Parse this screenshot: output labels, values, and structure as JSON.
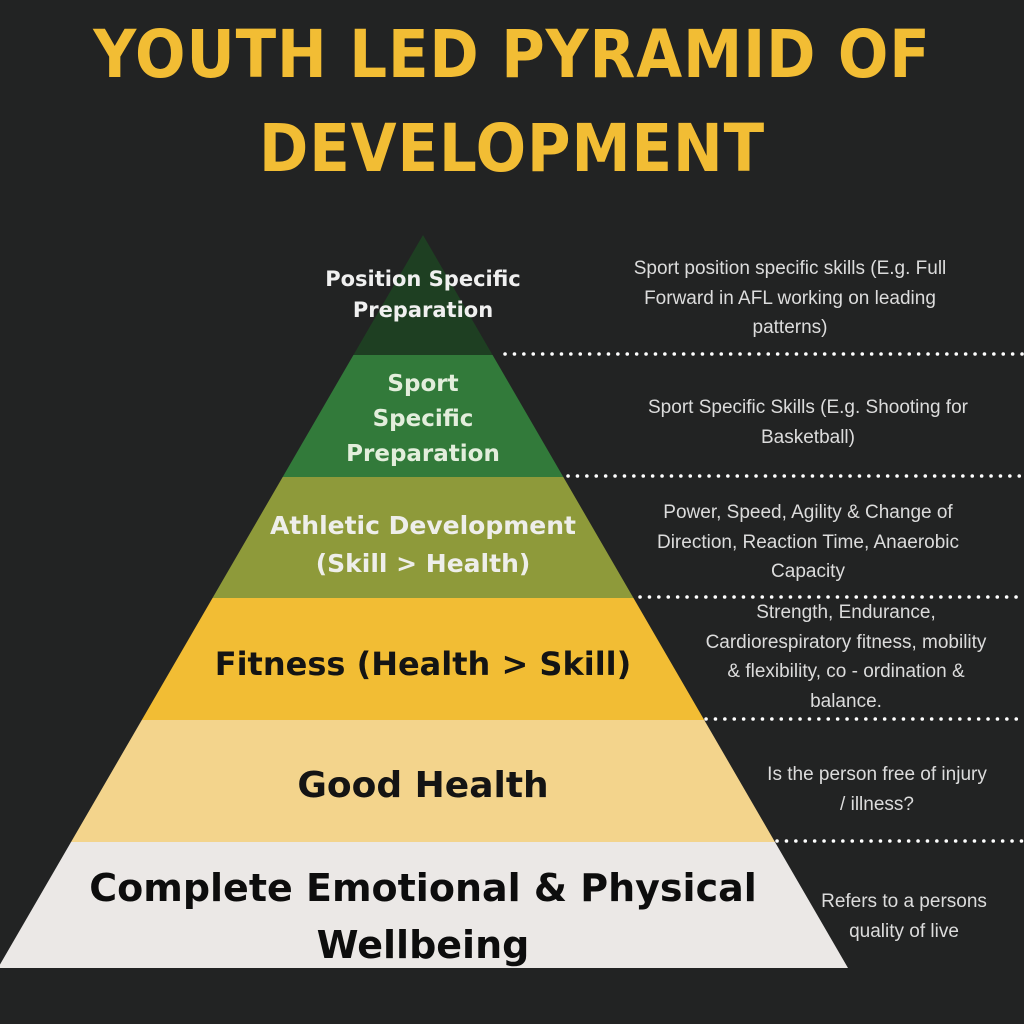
{
  "title": {
    "line1": "YOUTH LED PYRAMID OF",
    "line2": "DEVELOPMENT",
    "color": "#f2bd34"
  },
  "layers": [
    {
      "lines": [
        "Position Specific",
        "Preparation"
      ],
      "color": "#1e3f22",
      "text_color": "#f0f0f0",
      "description": [
        "Sport position specific skills (E.g. Full",
        "Forward in AFL working on leading",
        "patterns)"
      ]
    },
    {
      "lines": [
        "Sport",
        "Specific",
        "Preparation"
      ],
      "color": "#327a3a",
      "text_color": "#e3eedc",
      "description": [
        "Sport Specific Skills (E.g. Shooting for",
        "Basketball)"
      ]
    },
    {
      "lines": [
        "Athletic Development",
        "(Skill > Health)"
      ],
      "color": "#8e9a3a",
      "text_color": "#eeeeea",
      "description": [
        "Power, Speed, Agility & Change of",
        "Direction, Reaction Time, Anaerobic",
        "Capacity"
      ]
    },
    {
      "lines": [
        "Fitness (Health > Skill)"
      ],
      "color": "#f2bd34",
      "text_color": "#141414",
      "description": [
        "Strength, Endurance,",
        "Cardiorespiratory fitness, mobility",
        "& flexibility, co - ordination &",
        "balance."
      ]
    },
    {
      "lines": [
        "Good Health"
      ],
      "color": "#f3d48c",
      "text_color": "#141414",
      "description": [
        "Is the person free of injury",
        "/ illness?"
      ]
    },
    {
      "lines": [
        "Complete Emotional & Physical",
        "Wellbeing"
      ],
      "color": "#ebe8e6",
      "text_color": "#0d0d0d",
      "description": [
        "Refers to a persons",
        "quality of live"
      ]
    }
  ]
}
